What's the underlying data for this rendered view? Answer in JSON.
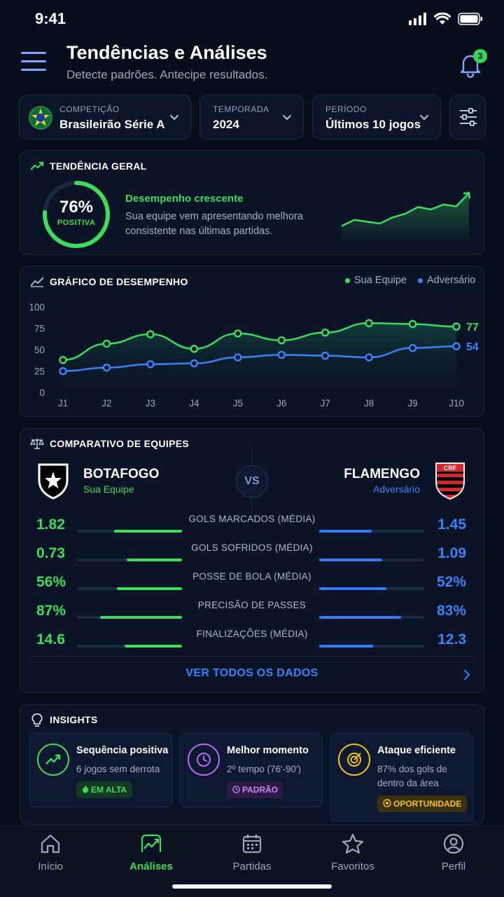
{
  "status_bar": {
    "time": "9:41"
  },
  "header": {
    "title": "Tendências e Análises",
    "subtitle": "Detecte padrões. Antecipe resultados.",
    "notifications_count": "3"
  },
  "filters": {
    "competition": {
      "label": "COMPETIÇÃO",
      "value": "Brasileirão Série A"
    },
    "season": {
      "label": "TEMPORADA",
      "value": "2024"
    },
    "period": {
      "label": "PERÍODO",
      "value": "Últimos 10 jogos"
    }
  },
  "trend": {
    "title": "TENDÊNCIA GERAL",
    "percent": "76%",
    "percent_value": 76,
    "percent_label": "POSITIVA",
    "headline": "Desempenho crescente",
    "description": "Sua equipe vem apresentando melhora consistente nas últimas partidas.",
    "sparkline": [
      20,
      30,
      27,
      24,
      34,
      40,
      51,
      47,
      55,
      52,
      74
    ]
  },
  "performance": {
    "title": "GRÁFICO DE DESEMPENHO",
    "legend_team": "Sua Equipe",
    "legend_opponent": "Adversário"
  },
  "chart_data": {
    "type": "line",
    "x": [
      "J1",
      "J2",
      "J3",
      "J4",
      "J5",
      "J6",
      "J7",
      "J8",
      "J9",
      "J10"
    ],
    "ylim": [
      0,
      100
    ],
    "yticks": [
      0,
      25,
      50,
      75,
      100
    ],
    "grid": false,
    "legend_position": "top-right",
    "series": [
      {
        "name": "Sua Equipe",
        "color": "#3ddc5c",
        "values": [
          38,
          57,
          68,
          51,
          69,
          61,
          70,
          81,
          80,
          77
        ],
        "end_label": "77"
      },
      {
        "name": "Adversário",
        "color": "#3b82f6",
        "values": [
          25,
          29,
          33,
          34,
          41,
          44,
          43,
          41,
          52,
          54
        ],
        "end_label": "54"
      }
    ]
  },
  "comparison": {
    "title": "COMPARATIVO DE EQUIPES",
    "team": {
      "name": "BOTAFOGO",
      "role": "Sua Equipe"
    },
    "opponent": {
      "name": "FLAMENGO",
      "role": "Adversário"
    },
    "vs": "VS",
    "stats": [
      {
        "label": "GOLS MARCADOS (MÉDIA)",
        "left": "1.82",
        "right": "1.45",
        "left_fill": 0.65,
        "right_fill": 0.5
      },
      {
        "label": "GOLS SOFRIDOS (MÉDIA)",
        "left": "0.73",
        "right": "1.09",
        "left_fill": 0.53,
        "right_fill": 0.6
      },
      {
        "label": "POSSE DE BOLA (MÉDIA)",
        "left": "56%",
        "right": "52%",
        "left_fill": 0.62,
        "right_fill": 0.64
      },
      {
        "label": "PRECISÃO DE PASSES",
        "left": "87%",
        "right": "83%",
        "left_fill": 0.78,
        "right_fill": 0.78
      },
      {
        "label": "FINALIZAÇÕES (MÉDIA)",
        "left": "14.6",
        "right": "12.3",
        "left_fill": 0.55,
        "right_fill": 0.51
      }
    ],
    "view_all": "VER TODOS OS DADOS"
  },
  "insights": {
    "title": "INSIGHTS",
    "items": [
      {
        "title": "Sequência positiva",
        "description": "6 jogos sem derrota",
        "tag": "EM ALTA",
        "color": "#3ddc5c"
      },
      {
        "title": "Melhor momento",
        "description": "2º tempo (76'-90')",
        "tag": "PADRÃO",
        "color": "#b46cf0"
      },
      {
        "title": "Ataque eficiente",
        "description": "87% dos gols de dentro da área",
        "tag": "OPORTUNIDADE",
        "color": "#f0c419"
      }
    ]
  },
  "nav": {
    "items": [
      {
        "label": "Início"
      },
      {
        "label": "Análises"
      },
      {
        "label": "Partidas"
      },
      {
        "label": "Favoritos"
      },
      {
        "label": "Perfil"
      }
    ]
  }
}
